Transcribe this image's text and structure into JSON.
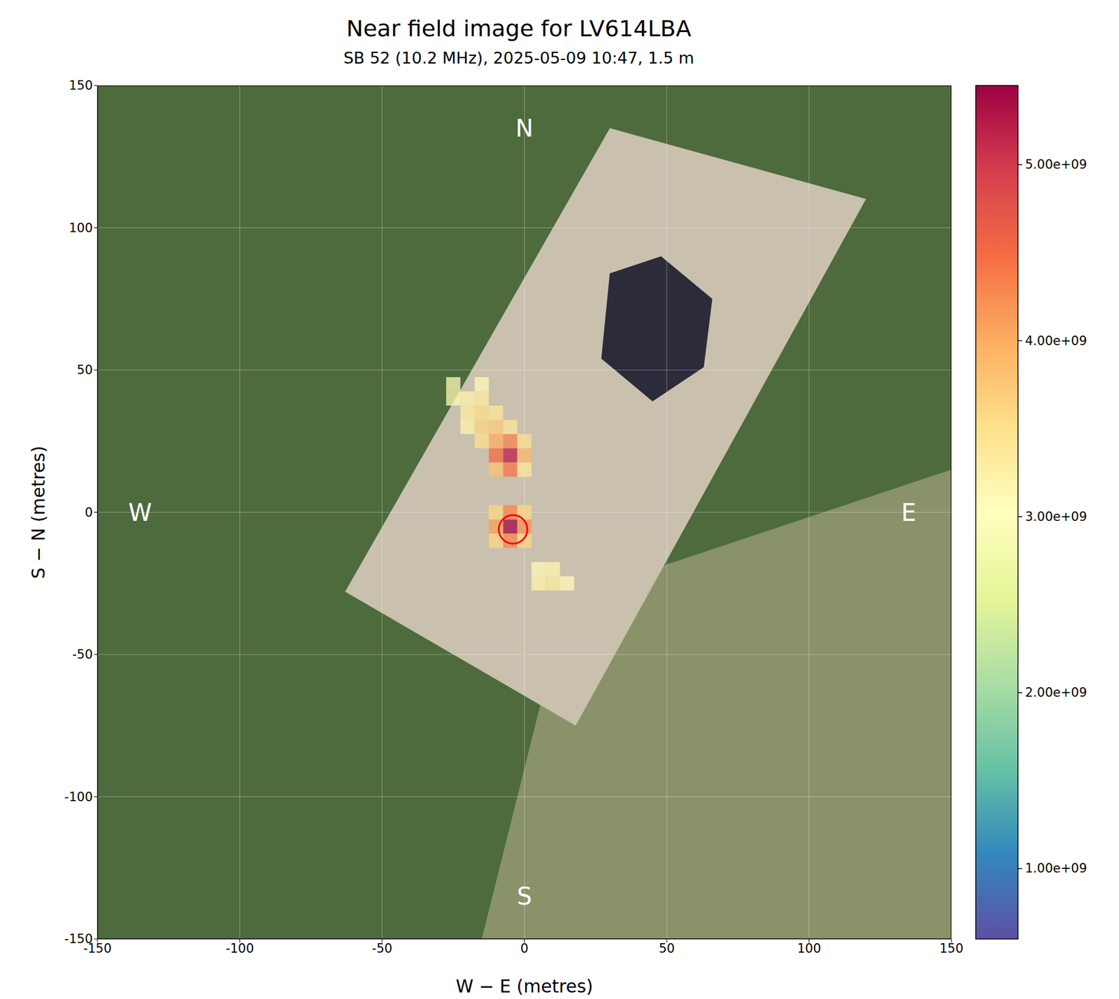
{
  "chart_data": {
    "type": "heatmap",
    "title": "Near field image for LV614LBA",
    "subtitle": "SB 52 (10.2 MHz), 2025-05-09 10:47, 1.5 m",
    "x_label": "W − E (metres)",
    "y_label": "S − N (metres)",
    "xlim": [
      -150,
      150
    ],
    "ylim": [
      -150,
      150
    ],
    "xticks": [
      -150,
      -100,
      -50,
      0,
      50,
      100,
      150
    ],
    "yticks": [
      -150,
      -100,
      -50,
      0,
      50,
      100,
      150
    ],
    "grid": true,
    "cell_size": 5,
    "cells": [
      {
        "x": -5,
        "y": -5,
        "value": 5400000000
      },
      {
        "x": -5,
        "y": 0,
        "value": 4300000000
      },
      {
        "x": -5,
        "y": -10,
        "value": 4300000000
      },
      {
        "x": -10,
        "y": -5,
        "value": 4100000000
      },
      {
        "x": 0,
        "y": -5,
        "value": 4200000000
      },
      {
        "x": -10,
        "y": 0,
        "value": 3600000000
      },
      {
        "x": 0,
        "y": 0,
        "value": 3600000000
      },
      {
        "x": -10,
        "y": -10,
        "value": 3600000000
      },
      {
        "x": 0,
        "y": -10,
        "value": 3600000000
      },
      {
        "x": -5,
        "y": 20,
        "value": 5200000000
      },
      {
        "x": -5,
        "y": 15,
        "value": 4400000000
      },
      {
        "x": -10,
        "y": 20,
        "value": 4500000000
      },
      {
        "x": 0,
        "y": 20,
        "value": 3900000000
      },
      {
        "x": -5,
        "y": 25,
        "value": 4300000000
      },
      {
        "x": -10,
        "y": 25,
        "value": 4000000000
      },
      {
        "x": -10,
        "y": 15,
        "value": 3800000000
      },
      {
        "x": 0,
        "y": 15,
        "value": 3400000000
      },
      {
        "x": 0,
        "y": 25,
        "value": 3500000000
      },
      {
        "x": -15,
        "y": 25,
        "value": 3500000000
      },
      {
        "x": -10,
        "y": 30,
        "value": 3700000000
      },
      {
        "x": -15,
        "y": 30,
        "value": 3600000000
      },
      {
        "x": -5,
        "y": 30,
        "value": 3400000000
      },
      {
        "x": -15,
        "y": 35,
        "value": 3500000000
      },
      {
        "x": -20,
        "y": 35,
        "value": 3300000000
      },
      {
        "x": -10,
        "y": 35,
        "value": 3400000000
      },
      {
        "x": -20,
        "y": 40,
        "value": 3200000000
      },
      {
        "x": -15,
        "y": 40,
        "value": 3300000000
      },
      {
        "x": -25,
        "y": 45,
        "value": 3100000000
      },
      {
        "x": -15,
        "y": 45,
        "value": 3100000000
      },
      {
        "x": -20,
        "y": 30,
        "value": 3200000000
      },
      {
        "x": -25,
        "y": 40,
        "value": 3100000000
      },
      {
        "x": 10,
        "y": -25,
        "value": 3300000000
      },
      {
        "x": 5,
        "y": -25,
        "value": 3200000000
      },
      {
        "x": 10,
        "y": -20,
        "value": 3200000000
      },
      {
        "x": 15,
        "y": -25,
        "value": 3100000000
      },
      {
        "x": 5,
        "y": -20,
        "value": 3100000000
      }
    ],
    "colorbar_lim": [
      600000000,
      5450000000
    ],
    "colorbar_ticks": [
      {
        "value": 1000000000,
        "label": "1.00e+09"
      },
      {
        "value": 2000000000,
        "label": "2.00e+09"
      },
      {
        "value": 3000000000,
        "label": "3.00e+09"
      },
      {
        "value": 4000000000,
        "label": "4.00e+09"
      },
      {
        "value": 5000000000,
        "label": "5.00e+09"
      }
    ],
    "highlight": {
      "x": -4,
      "y": -6,
      "color": "red"
    },
    "annotations": [
      {
        "text": "N",
        "x": 0,
        "y": 135
      },
      {
        "text": "S",
        "x": 0,
        "y": -135
      },
      {
        "text": "W",
        "x": -135,
        "y": 0
      },
      {
        "text": "E",
        "x": 135,
        "y": 0
      }
    ]
  }
}
